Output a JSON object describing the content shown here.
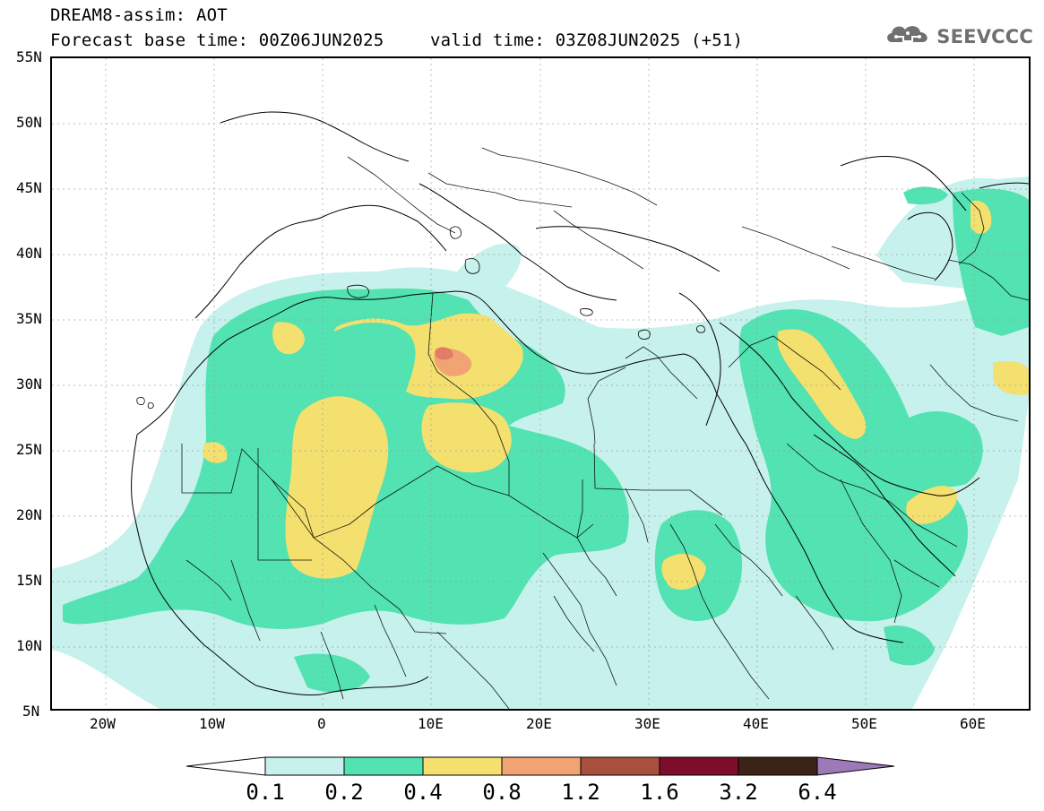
{
  "header": {
    "title": "DREAM8-assim: AOT",
    "base_time": "Forecast base time: 00Z06JUN2025",
    "valid_time": "valid time: 03Z08JUN2025 (+51)"
  },
  "logo": {
    "text": "SEEVCCC",
    "icon": "cloud-icon"
  },
  "map": {
    "lat_range": [
      5,
      55
    ],
    "lon_range": [
      -25,
      65
    ],
    "grid": "dotted",
    "lat_ticks": [
      "55N",
      "50N",
      "45N",
      "40N",
      "35N",
      "30N",
      "25N",
      "20N",
      "15N",
      "10N",
      "5N"
    ],
    "lon_ticks": [
      "20W",
      "10W",
      "0",
      "10E",
      "20E",
      "30E",
      "40E",
      "50E",
      "60E"
    ]
  },
  "legend": {
    "labels": [
      "0.1",
      "0.2",
      "0.4",
      "0.8",
      "1.2",
      "1.6",
      "3.2",
      "6.4"
    ],
    "colors": [
      "#c6f1ec",
      "#53e2b1",
      "#f3e06f",
      "#f1a374",
      "#a84f3d",
      "#7e0d2b",
      "#3b2417",
      "#9d79b8"
    ]
  }
}
